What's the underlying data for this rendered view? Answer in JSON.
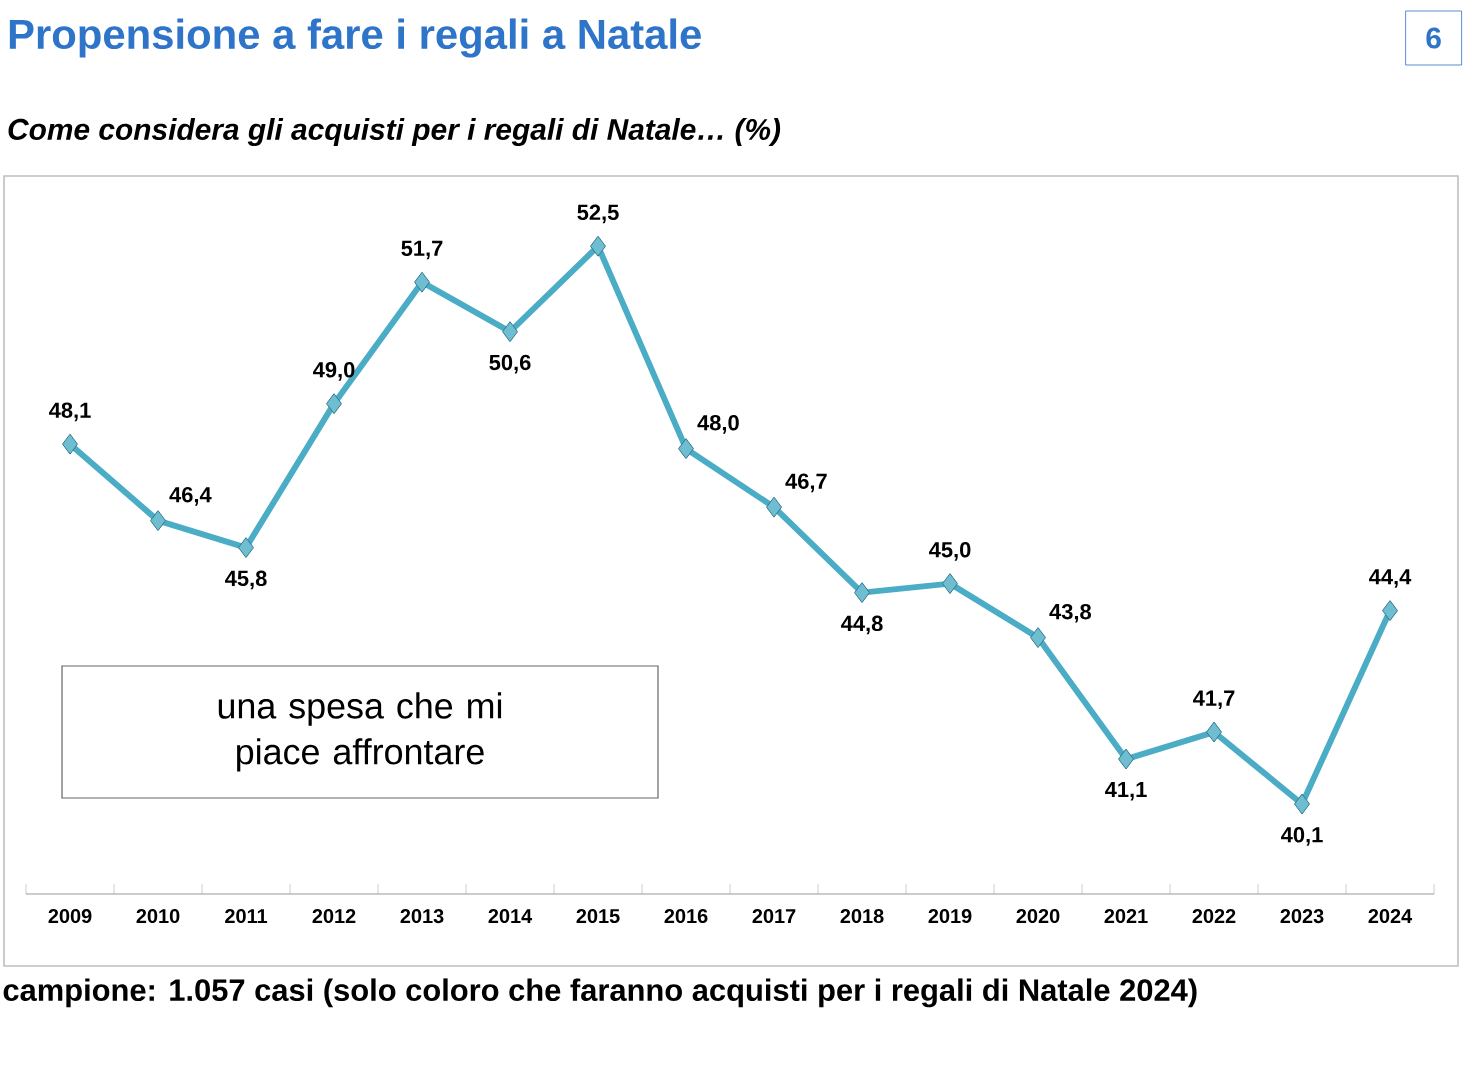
{
  "chart_data": {
    "type": "line",
    "title": "Propensione a fare i regali a Natale",
    "subtitle": "Come considera gli acquisti per i regali di Natale… (%)",
    "categories": [
      "2009",
      "2010",
      "2011",
      "2012",
      "2013",
      "2014",
      "2015",
      "2016",
      "2017",
      "2018",
      "2019",
      "2020",
      "2021",
      "2022",
      "2023",
      "2024"
    ],
    "series": [
      {
        "color": "#4bacc6",
        "values": [
          48.1,
          46.4,
          45.8,
          49.0,
          51.7,
          50.6,
          52.5,
          48.0,
          46.7,
          44.8,
          45.0,
          43.8,
          41.1,
          41.7,
          40.1,
          44.4
        ],
        "value_labels": [
          "48,1",
          "46,4",
          "45,8",
          "49,0",
          "51,7",
          "50,6",
          "52,5",
          "48,0",
          "46,7",
          "44,8",
          "45,0",
          "43,8",
          "41,1",
          "41,7",
          "40,1",
          "44,4"
        ]
      }
    ],
    "marker": "diamond",
    "annotations": [
      "una spesa che mi piace affrontare",
      "campione: 1.057 casi (solo coloro che faranno acquisti per i regali di Natale 2024)",
      "6"
    ]
  }
}
